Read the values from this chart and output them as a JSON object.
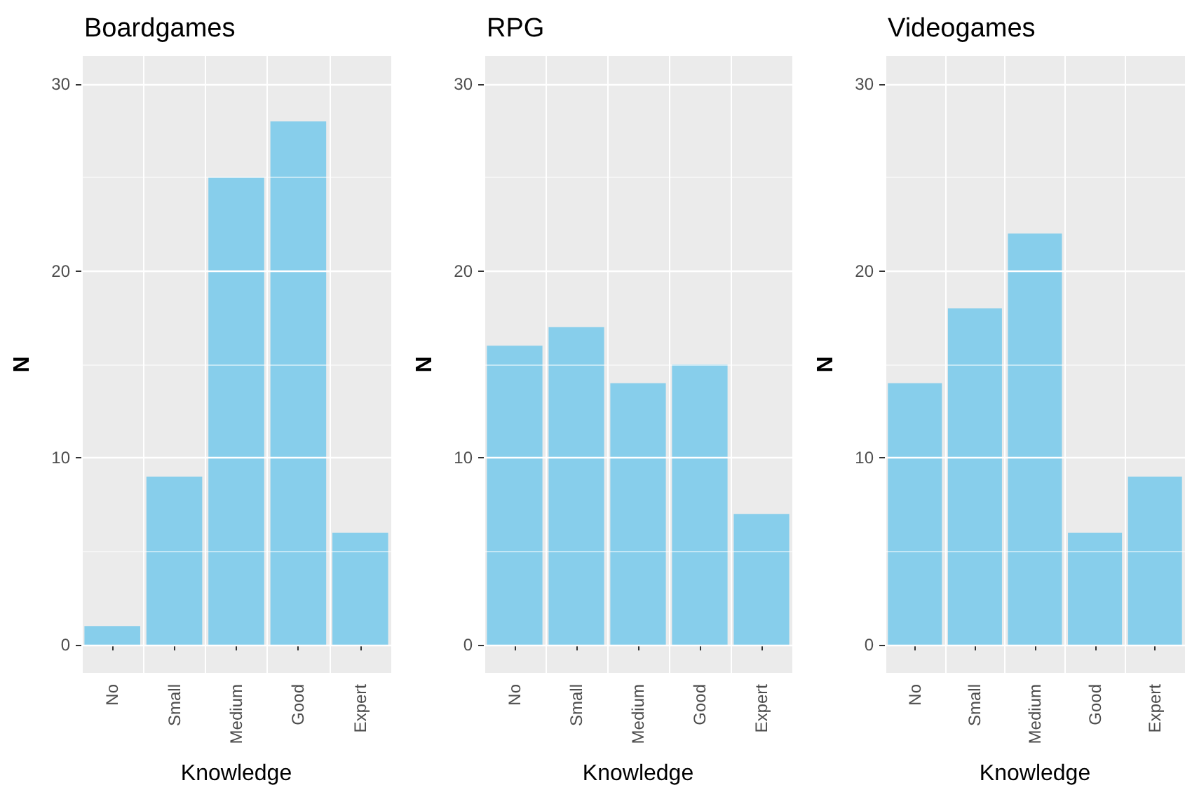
{
  "chart_data": [
    {
      "type": "bar",
      "title": "Boardgames",
      "xlabel": "Knowledge",
      "ylabel": "N",
      "categories": [
        "No",
        "Small",
        "Medium",
        "Good",
        "Expert"
      ],
      "values": [
        1,
        9,
        25,
        28,
        6
      ],
      "color": "#87ceeb",
      "ylim": [
        -1.5,
        31.5
      ],
      "yticks": [
        0,
        10,
        20,
        30
      ],
      "grid": true
    },
    {
      "type": "bar",
      "title": "RPG",
      "xlabel": "Knowledge",
      "ylabel": "N",
      "categories": [
        "No",
        "Small",
        "Medium",
        "Good",
        "Expert"
      ],
      "values": [
        16,
        17,
        14,
        15,
        7
      ],
      "color": "#87ceeb",
      "ylim": [
        -1.5,
        31.5
      ],
      "yticks": [
        0,
        10,
        20,
        30
      ],
      "grid": true
    },
    {
      "type": "bar",
      "title": "Videogames",
      "xlabel": "Knowledge",
      "ylabel": "N",
      "categories": [
        "No",
        "Small",
        "Medium",
        "Good",
        "Expert"
      ],
      "values": [
        14,
        18,
        22,
        6,
        9
      ],
      "color": "#87ceeb",
      "ylim": [
        -1.5,
        31.5
      ],
      "yticks": [
        0,
        10,
        20,
        30
      ],
      "grid": true
    }
  ]
}
